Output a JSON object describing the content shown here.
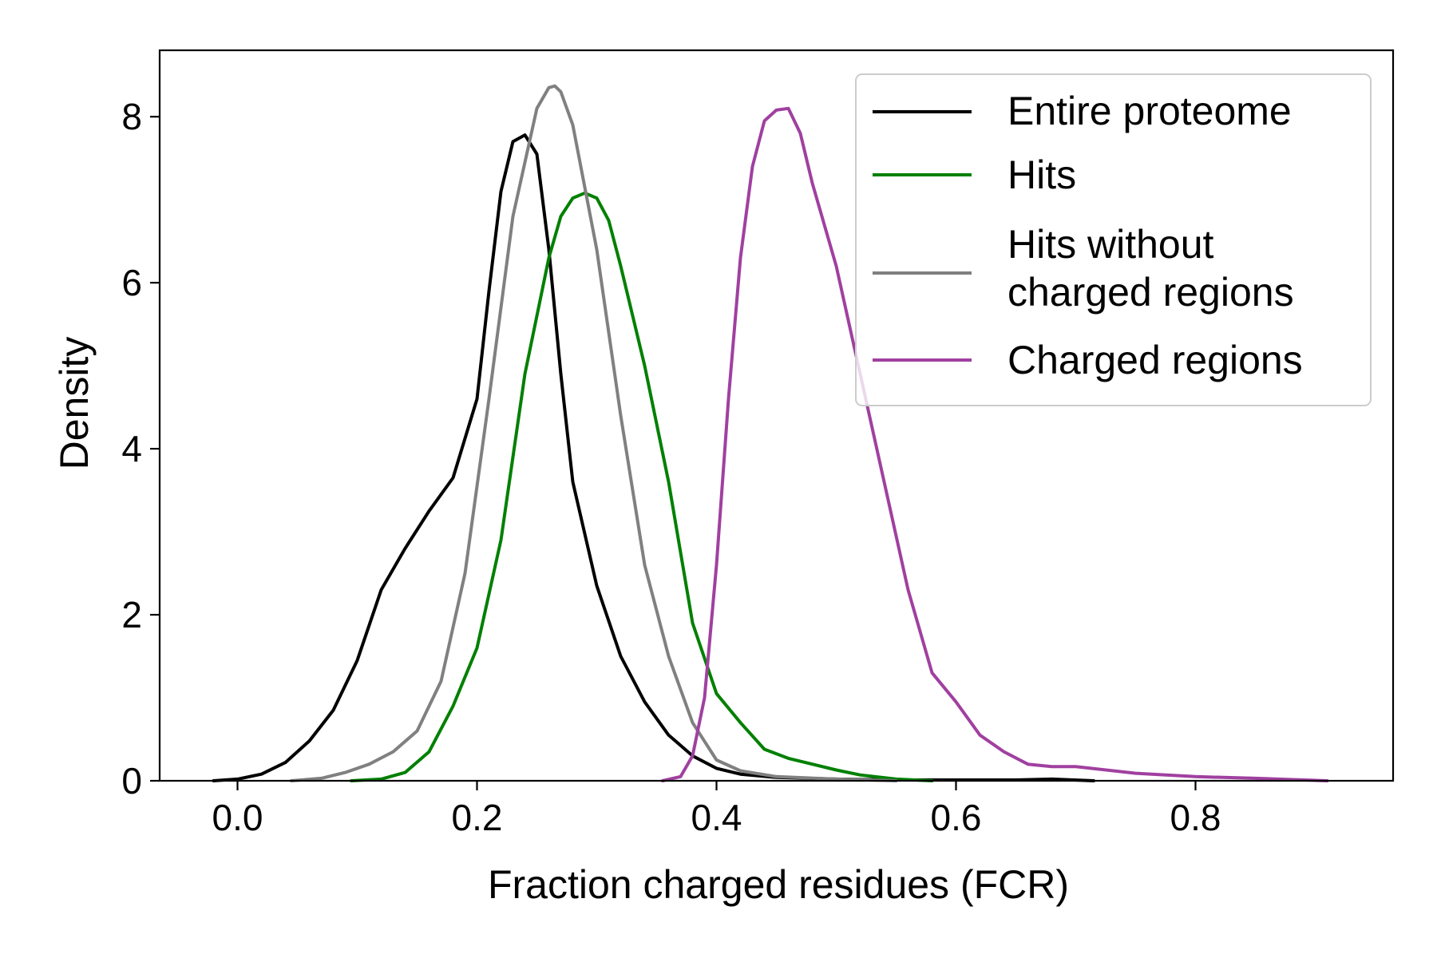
{
  "chart_data": {
    "type": "line",
    "title": "",
    "xlabel": "Fraction charged residues (FCR)",
    "ylabel": "Density",
    "xlim": [
      -0.065,
      0.965
    ],
    "ylim": [
      0,
      8.8
    ],
    "xticks": [
      0.0,
      0.2,
      0.4,
      0.6,
      0.8
    ],
    "xtick_labels": [
      "0.0",
      "0.2",
      "0.4",
      "0.6",
      "0.8"
    ],
    "yticks": [
      0,
      2,
      4,
      6,
      8
    ],
    "ytick_labels": [
      "0",
      "2",
      "4",
      "6",
      "8"
    ],
    "grid": false,
    "legend_position": "top-right",
    "series": [
      {
        "name": "Entire proteome",
        "color": "#000000",
        "x": [
          -0.02,
          0.0,
          0.02,
          0.04,
          0.06,
          0.08,
          0.1,
          0.12,
          0.14,
          0.16,
          0.18,
          0.2,
          0.21,
          0.22,
          0.23,
          0.24,
          0.25,
          0.26,
          0.27,
          0.28,
          0.3,
          0.32,
          0.34,
          0.36,
          0.38,
          0.4,
          0.42,
          0.45,
          0.5,
          0.55,
          0.6,
          0.65,
          0.68,
          0.715
        ],
        "y": [
          0.0,
          0.02,
          0.08,
          0.22,
          0.48,
          0.85,
          1.45,
          2.3,
          2.8,
          3.25,
          3.65,
          4.6,
          5.9,
          7.1,
          7.7,
          7.78,
          7.55,
          6.4,
          4.9,
          3.6,
          2.35,
          1.5,
          0.95,
          0.55,
          0.3,
          0.15,
          0.08,
          0.04,
          0.02,
          0.01,
          0.01,
          0.01,
          0.02,
          0.0
        ]
      },
      {
        "name": "Hits",
        "color": "#008000",
        "x": [
          0.095,
          0.12,
          0.14,
          0.16,
          0.18,
          0.2,
          0.22,
          0.24,
          0.26,
          0.27,
          0.28,
          0.29,
          0.3,
          0.31,
          0.32,
          0.34,
          0.36,
          0.38,
          0.4,
          0.42,
          0.44,
          0.46,
          0.48,
          0.5,
          0.52,
          0.55,
          0.58
        ],
        "y": [
          0.0,
          0.02,
          0.1,
          0.35,
          0.9,
          1.6,
          2.9,
          4.9,
          6.3,
          6.8,
          7.02,
          7.08,
          7.02,
          6.75,
          6.2,
          5.0,
          3.6,
          1.9,
          1.05,
          0.7,
          0.38,
          0.27,
          0.2,
          0.13,
          0.07,
          0.02,
          0.0
        ]
      },
      {
        "name": "Hits without\ncharged regions",
        "color": "#808080",
        "x": [
          0.045,
          0.07,
          0.09,
          0.11,
          0.13,
          0.15,
          0.17,
          0.19,
          0.21,
          0.23,
          0.25,
          0.26,
          0.265,
          0.27,
          0.28,
          0.3,
          0.32,
          0.34,
          0.36,
          0.38,
          0.4,
          0.42,
          0.45,
          0.5,
          0.55
        ],
        "y": [
          0.0,
          0.03,
          0.1,
          0.2,
          0.35,
          0.6,
          1.2,
          2.5,
          4.6,
          6.8,
          8.1,
          8.35,
          8.37,
          8.3,
          7.9,
          6.4,
          4.4,
          2.6,
          1.5,
          0.7,
          0.25,
          0.12,
          0.05,
          0.02,
          0.0
        ]
      },
      {
        "name": "Charged regions",
        "color": "#a040a0",
        "x": [
          0.355,
          0.37,
          0.38,
          0.39,
          0.4,
          0.41,
          0.42,
          0.43,
          0.44,
          0.45,
          0.46,
          0.47,
          0.48,
          0.5,
          0.52,
          0.54,
          0.56,
          0.58,
          0.6,
          0.62,
          0.64,
          0.66,
          0.68,
          0.7,
          0.75,
          0.8,
          0.85,
          0.91
        ],
        "y": [
          0.0,
          0.05,
          0.3,
          1.0,
          2.6,
          4.6,
          6.3,
          7.4,
          7.95,
          8.08,
          8.1,
          7.8,
          7.2,
          6.2,
          4.9,
          3.6,
          2.3,
          1.3,
          0.95,
          0.55,
          0.35,
          0.2,
          0.17,
          0.17,
          0.09,
          0.05,
          0.03,
          0.0
        ]
      }
    ]
  }
}
